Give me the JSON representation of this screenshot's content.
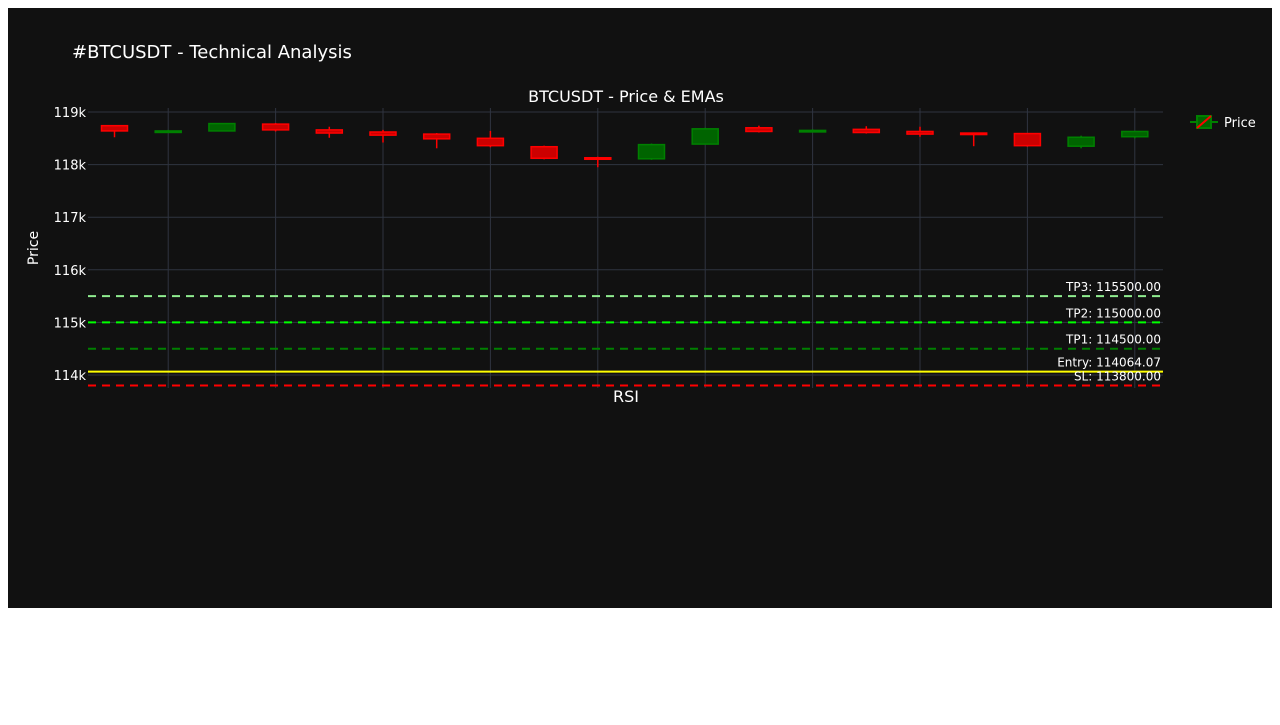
{
  "page_title": "#BTCUSDT - Technical Analysis",
  "chart_data": {
    "type": "candlestick",
    "title": "BTCUSDT - Price & EMAs",
    "xlabel": "",
    "ylabel": "Price",
    "ylim": [
      113700,
      119100
    ],
    "y_ticks": [
      {
        "value": 114000,
        "label": "114k"
      },
      {
        "value": 115000,
        "label": "115k"
      },
      {
        "value": 116000,
        "label": "116k"
      },
      {
        "value": 117000,
        "label": "117k"
      },
      {
        "value": 118000,
        "label": "118k"
      },
      {
        "value": 119000,
        "label": "119k"
      }
    ],
    "grid": true,
    "legend": {
      "position": "top-right",
      "entries": [
        "Price"
      ]
    },
    "colors": {
      "increasing": "#008000",
      "decreasing": "#ff0000",
      "background": "#111111",
      "grid": "#2f3440",
      "entry": "#ffff00",
      "sl": "#ff0000",
      "tp1": "#008000",
      "tp2": "#00ff00",
      "tp3": "#90ee90"
    },
    "candles": [
      {
        "open": 118740,
        "high": 118750,
        "low": 118520,
        "close": 118640
      },
      {
        "open": 118630,
        "high": 118660,
        "low": 118610,
        "close": 118640
      },
      {
        "open": 118640,
        "high": 118790,
        "low": 118630,
        "close": 118780
      },
      {
        "open": 118770,
        "high": 118790,
        "low": 118630,
        "close": 118660
      },
      {
        "open": 118660,
        "high": 118720,
        "low": 118510,
        "close": 118600
      },
      {
        "open": 118620,
        "high": 118660,
        "low": 118420,
        "close": 118560
      },
      {
        "open": 118580,
        "high": 118600,
        "low": 118310,
        "close": 118490
      },
      {
        "open": 118500,
        "high": 118640,
        "low": 118330,
        "close": 118360
      },
      {
        "open": 118340,
        "high": 118360,
        "low": 118100,
        "close": 118120
      },
      {
        "open": 118130,
        "high": 118150,
        "low": 117950,
        "close": 118110
      },
      {
        "open": 118110,
        "high": 118400,
        "low": 118090,
        "close": 118380
      },
      {
        "open": 118390,
        "high": 118700,
        "low": 118380,
        "close": 118680
      },
      {
        "open": 118700,
        "high": 118740,
        "low": 118610,
        "close": 118630
      },
      {
        "open": 118630,
        "high": 118670,
        "low": 118610,
        "close": 118650
      },
      {
        "open": 118670,
        "high": 118730,
        "low": 118590,
        "close": 118610
      },
      {
        "open": 118630,
        "high": 118720,
        "low": 118530,
        "close": 118580
      },
      {
        "open": 118600,
        "high": 118610,
        "low": 118350,
        "close": 118580
      },
      {
        "open": 118590,
        "high": 118600,
        "low": 118340,
        "close": 118360
      },
      {
        "open": 118350,
        "high": 118550,
        "low": 118310,
        "close": 118520
      },
      {
        "open": 118530,
        "high": 118640,
        "low": 118500,
        "close": 118630
      }
    ],
    "levels": [
      {
        "name": "TP3",
        "value": 115500,
        "label": "TP3: 115500.00",
        "style": "dash",
        "color_key": "tp3"
      },
      {
        "name": "TP2",
        "value": 115000,
        "label": "TP2: 115000.00",
        "style": "dash",
        "color_key": "tp2"
      },
      {
        "name": "TP1",
        "value": 114500,
        "label": "TP1: 114500.00",
        "style": "dash",
        "color_key": "tp1"
      },
      {
        "name": "Entry",
        "value": 114064.07,
        "label": "Entry: 114064.07",
        "style": "solid",
        "color_key": "entry"
      },
      {
        "name": "SL",
        "value": 113800,
        "label": "SL: 113800.00",
        "style": "dash",
        "color_key": "sl"
      }
    ],
    "subplot_title": "RSI"
  }
}
